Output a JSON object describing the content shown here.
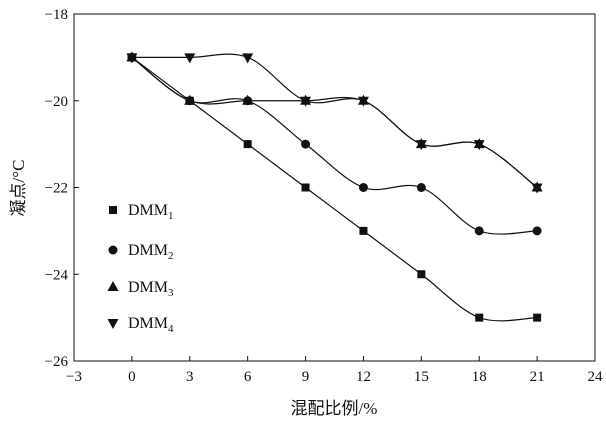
{
  "chart_data": {
    "type": "line",
    "title": "",
    "xlabel": "混配比例/%",
    "ylabel": "凝点/°C",
    "xlim": [
      -3,
      24
    ],
    "ylim": [
      -26,
      -18
    ],
    "xticks": [
      -3,
      0,
      3,
      6,
      9,
      12,
      15,
      18,
      21,
      24
    ],
    "yticks": [
      -26,
      -24,
      -22,
      -20,
      -18
    ],
    "xtick_labels": [
      "−3",
      "0",
      "3",
      "6",
      "9",
      "12",
      "15",
      "18",
      "21",
      "24"
    ],
    "ytick_labels": [
      "−26",
      "−24",
      "−22",
      "−20",
      "−18"
    ],
    "grid": false,
    "legend_position": "left",
    "x": [
      0,
      3,
      6,
      9,
      12,
      15,
      18,
      21
    ],
    "series": [
      {
        "name": "DMM",
        "sub": "1",
        "marker": "square",
        "values": [
          -19,
          -20,
          -21,
          -22,
          -23,
          -24,
          -25,
          -25
        ]
      },
      {
        "name": "DMM",
        "sub": "2",
        "marker": "circle",
        "values": [
          -19,
          -20,
          -20,
          -21,
          -22,
          -22,
          -23,
          -23
        ]
      },
      {
        "name": "DMM",
        "sub": "3",
        "marker": "triangle-up",
        "values": [
          -19,
          -20,
          -20,
          -20,
          -20,
          -21,
          -21,
          -22
        ]
      },
      {
        "name": "DMM",
        "sub": "4",
        "marker": "triangle-down",
        "values": [
          -19,
          -19,
          -19,
          -20,
          -20,
          -21,
          -21,
          -22
        ]
      }
    ],
    "color": "#111111"
  }
}
